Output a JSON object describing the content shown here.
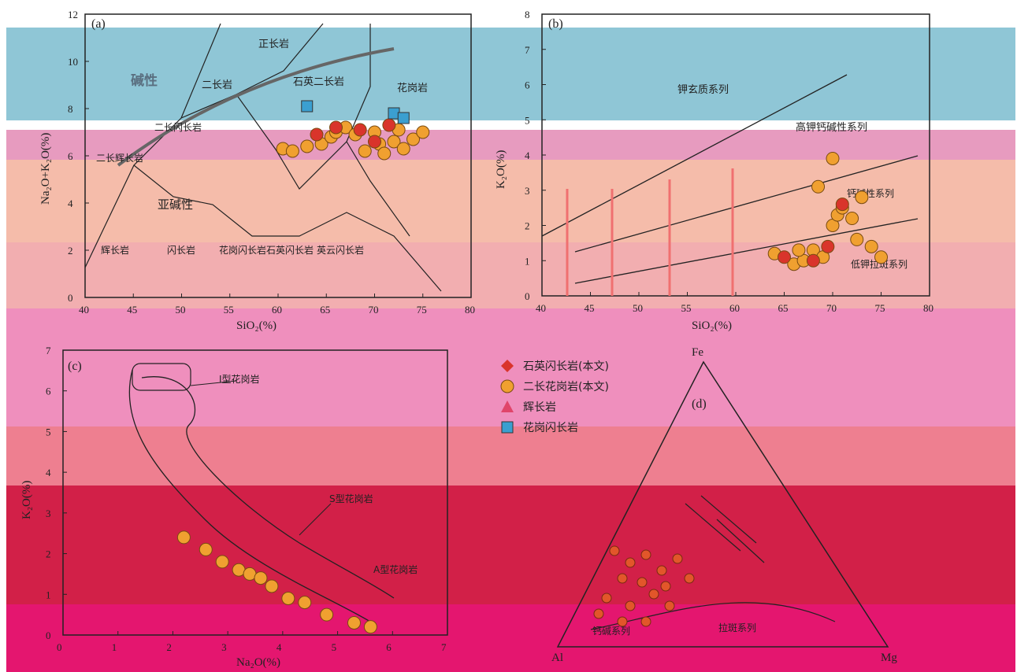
{
  "bands": [
    "#8fc6d6",
    "#e79bbf",
    "#f5bcaa",
    "#f2aeb0",
    "#ef8fbd",
    "#ee7f90",
    "#d22048",
    "#e4166f"
  ],
  "panel_a": {
    "label": "(a)",
    "xlabel": "SiO₂(%)",
    "ylabel": "Na₂O+K₂O(%)",
    "x_ticks": [
      "40",
      "45",
      "50",
      "55",
      "60",
      "65",
      "70",
      "75",
      "80"
    ],
    "y_ticks": [
      "0",
      "2",
      "4",
      "6",
      "8",
      "10",
      "12"
    ],
    "fields": [
      "正长岩",
      "二长岩",
      "石英二长岩",
      "花岗岩",
      "二长闪长岩",
      "二长辉长岩",
      "辉长岩",
      "闪长岩",
      "花岗闪长岩",
      "石英闪长岩",
      "英云闪长岩"
    ],
    "series_label_alkaline": "碱性",
    "series_label_subalkaline": "亚碱性"
  },
  "panel_b": {
    "label": "(b)",
    "xlabel": "SiO₂(%)",
    "ylabel": "K₂O(%)",
    "x_ticks": [
      "40",
      "45",
      "50",
      "55",
      "60",
      "65",
      "70",
      "75",
      "80"
    ],
    "y_ticks": [
      "0",
      "1",
      "2",
      "3",
      "4",
      "5",
      "6",
      "7",
      "8"
    ],
    "series": [
      "钾玄质系列",
      "高钾钙碱性系列",
      "钙碱性系列",
      "低钾拉斑系列"
    ]
  },
  "panel_c": {
    "label": "(c)",
    "xlabel": "Na₂O(%)",
    "ylabel": "K₂O(%)",
    "x_ticks": [
      "0",
      "1",
      "2",
      "3",
      "4",
      "5",
      "6",
      "7"
    ],
    "y_ticks": [
      "0",
      "1",
      "2",
      "3",
      "4",
      "5",
      "6",
      "7"
    ],
    "fields": [
      "I型花岗岩",
      "S型花岗岩",
      "A型花岗岩"
    ]
  },
  "panel_d": {
    "label": "(d)",
    "apex_top": "Fe",
    "apex_left": "Al",
    "apex_right": "Mg",
    "fields": [
      "拉斑系列",
      "钙碱系列"
    ]
  },
  "legend": {
    "items": [
      {
        "label": "石英闪长岩(本文)",
        "shape": "diamond",
        "color": "#d9342b"
      },
      {
        "label": "二长花岗岩(本文)",
        "shape": "circle",
        "color": "#f0a030"
      },
      {
        "label": "辉长岩",
        "shape": "triangle",
        "color": "#e0456a"
      },
      {
        "label": "花岗闪长岩",
        "shape": "square",
        "color": "#3b9fd0"
      }
    ]
  },
  "chart_data": [
    {
      "type": "scatter",
      "title": "",
      "xlabel": "SiO₂(%)",
      "ylabel": "Na₂O+K₂O(%)",
      "xlim": [
        40,
        80
      ],
      "ylim": [
        0,
        12
      ],
      "series": [
        {
          "name": "二长花岗岩(本文)",
          "x": [
            60.5,
            61.5,
            63,
            64.5,
            65.5,
            66,
            67,
            68,
            69,
            70,
            70.5,
            71,
            72,
            72.5,
            73,
            74,
            75
          ],
          "y": [
            6.3,
            6.2,
            6.4,
            6.5,
            6.8,
            7.0,
            7.2,
            6.9,
            6.2,
            7.0,
            6.5,
            6.1,
            6.6,
            7.1,
            6.3,
            6.7,
            7.0
          ]
        },
        {
          "name": "石英闪长岩(本文)",
          "x": [
            64,
            66,
            68.5,
            70,
            71.5
          ],
          "y": [
            6.9,
            7.2,
            7.1,
            6.6,
            7.3
          ]
        },
        {
          "name": "花岗闪长岩",
          "x": [
            63,
            72,
            73
          ],
          "y": [
            8.1,
            7.8,
            7.6
          ]
        }
      ]
    },
    {
      "type": "scatter",
      "title": "",
      "xlabel": "SiO₂(%)",
      "ylabel": "K₂O(%)",
      "xlim": [
        40,
        80
      ],
      "ylim": [
        0,
        8
      ],
      "series": [
        {
          "name": "二长花岗岩(本文)",
          "x": [
            64,
            66,
            67,
            68,
            69,
            70,
            70.5,
            71,
            72,
            72.5,
            73,
            74,
            75,
            70,
            68.5,
            66.5
          ],
          "y": [
            1.2,
            0.9,
            1.0,
            1.3,
            1.1,
            2.0,
            2.3,
            2.5,
            2.2,
            1.6,
            2.8,
            1.4,
            1.1,
            3.9,
            3.1,
            1.3
          ]
        },
        {
          "name": "石英闪长岩(本文)",
          "x": [
            65,
            68,
            69.5,
            71
          ],
          "y": [
            1.1,
            1.0,
            1.4,
            2.6
          ]
        }
      ]
    },
    {
      "type": "scatter",
      "title": "",
      "xlabel": "Na₂O(%)",
      "ylabel": "K₂O(%)",
      "xlim": [
        0,
        7
      ],
      "ylim": [
        0,
        7
      ],
      "series": [
        {
          "name": "二长花岗岩(本文)",
          "x": [
            2.2,
            2.6,
            2.9,
            3.2,
            3.4,
            3.6,
            3.8,
            4.1,
            4.4,
            4.8,
            5.3,
            5.6
          ],
          "y": [
            2.4,
            2.1,
            1.8,
            1.6,
            1.5,
            1.4,
            1.2,
            0.9,
            0.8,
            0.5,
            0.3,
            0.2
          ]
        }
      ]
    }
  ]
}
